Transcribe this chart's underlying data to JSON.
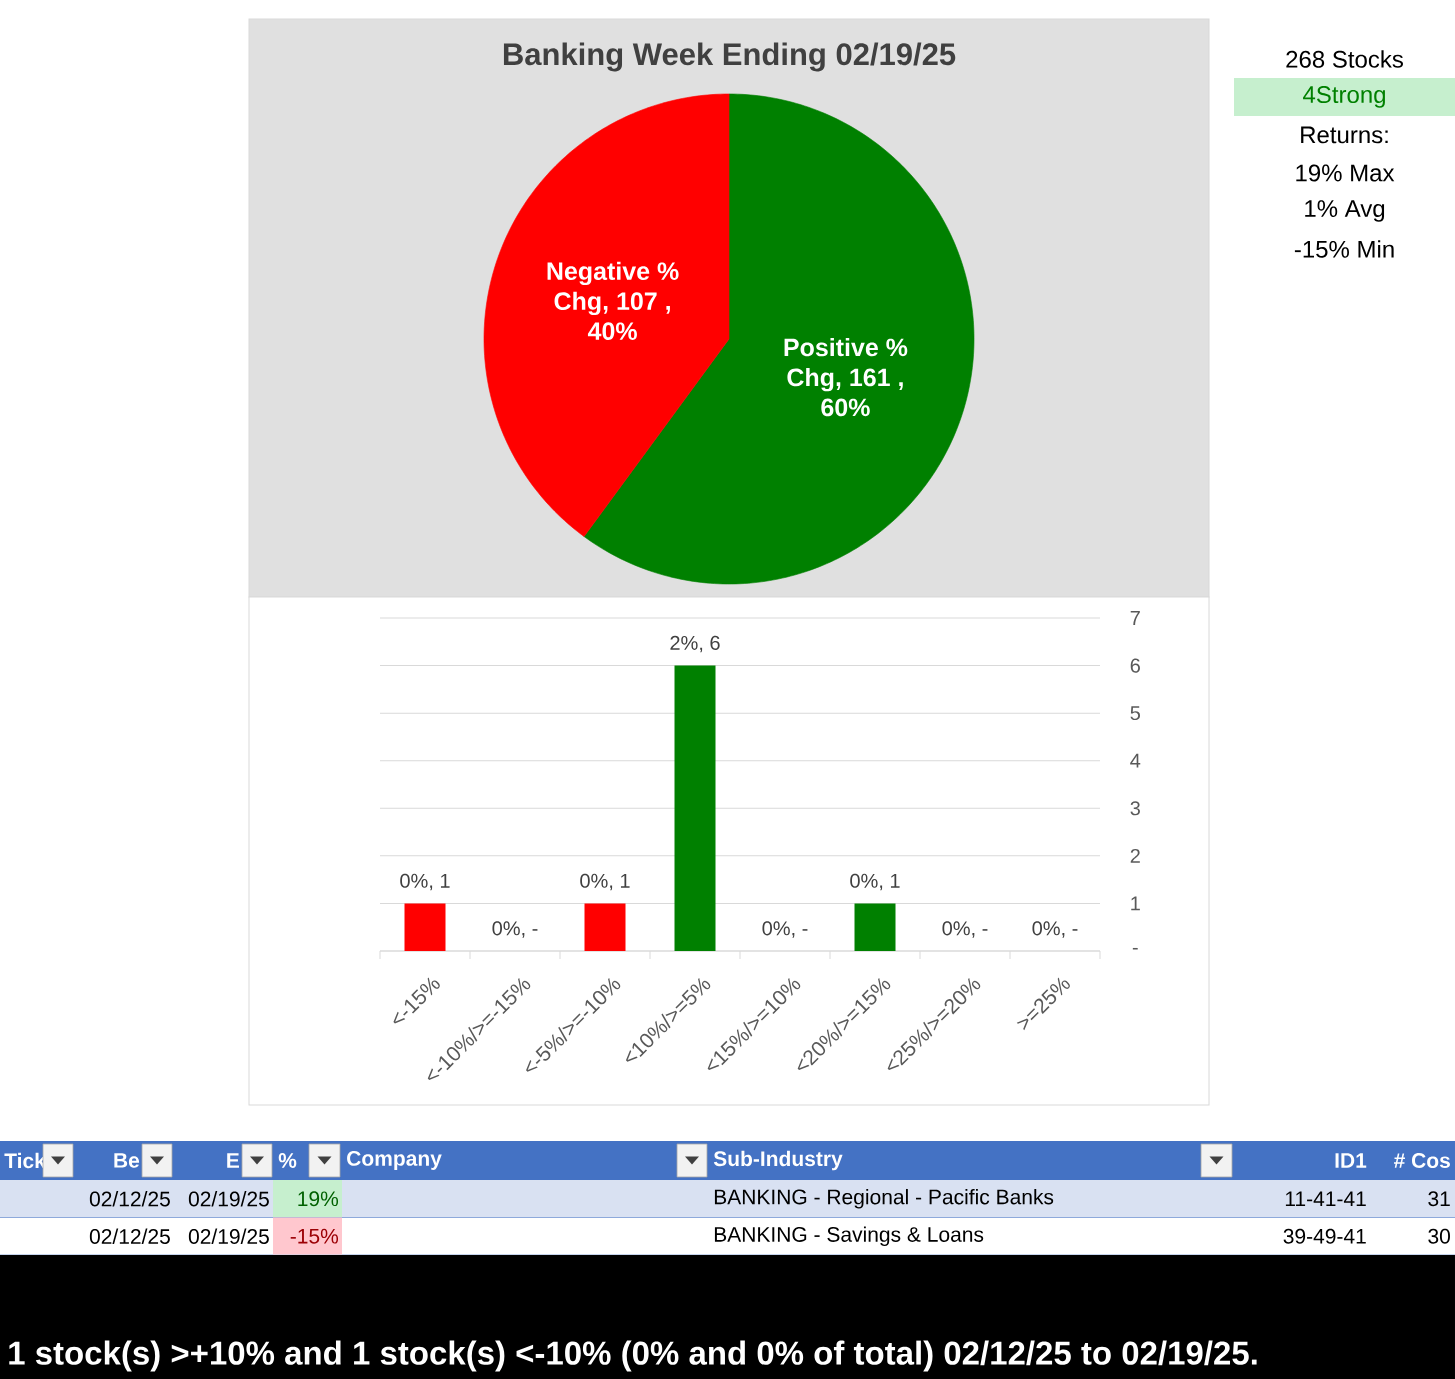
{
  "chart_data": [
    {
      "type": "pie",
      "title": "Banking Week Ending 02/19/25",
      "categories": [
        null,
        null
      ],
      "values": [
        161,
        107
      ],
      "colors": [
        "#008000",
        "#ff0000"
      ],
      "value_labels": [
        "Positive % Chg, 161 , 60%",
        "Negative % Chg, 107 , 40%"
      ]
    },
    {
      "type": "bar",
      "categories": [
        "<-15%",
        "<-10%/>=-15%",
        "<-5%/>=-10%",
        "<10%/>=5%",
        "<15%/>=10%",
        "<20%/>=15%",
        "<25%/>=20%",
        ">=25%"
      ],
      "values": [
        1,
        0,
        1,
        6,
        0,
        1,
        0,
        0
      ],
      "colors": [
        "#ff0000",
        "#ff0000",
        "#ff0000",
        "#008000",
        "#008000",
        "#008000",
        "#008000",
        "#008000"
      ],
      "value_labels": [
        "0%, 1",
        "0%, -",
        "0%, 1",
        "2%, 6",
        "0%, -",
        "0%, 1",
        "0%, -",
        "0%, -"
      ],
      "ylim": [
        0,
        7
      ],
      "yticks": [
        {
          "value": 0,
          "label": "-"
        },
        1,
        2,
        3,
        4,
        5,
        6,
        7
      ],
      "grid": "y"
    },
    {
      "type": "other",
      "annotations": [
        "268 Stocks",
        "4Strong",
        "Returns:",
        "19% Max",
        "1% Avg",
        "-15% Min"
      ]
    },
    {
      "type": "other",
      "categories": [
        "Tick",
        "Be",
        "E",
        "%",
        "Company",
        "Sub-Industry",
        "ID1",
        "# Cos"
      ],
      "cell_labels": [
        [
          null,
          "02/12/25",
          "02/19/25",
          "19%",
          null,
          "BANKING - Regional - Pacific Banks",
          "11-41-41",
          "31"
        ],
        [
          null,
          "02/12/25",
          "02/19/25",
          "-15%",
          null,
          "BANKING - Savings & Loans",
          "39-49-41",
          "30"
        ]
      ],
      "annotations": [
        "1 stock(s) >+10% and 1 stock(s) <-10% (0% and 0% of total) 02/12/25 to 02/19/25."
      ]
    }
  ]
}
